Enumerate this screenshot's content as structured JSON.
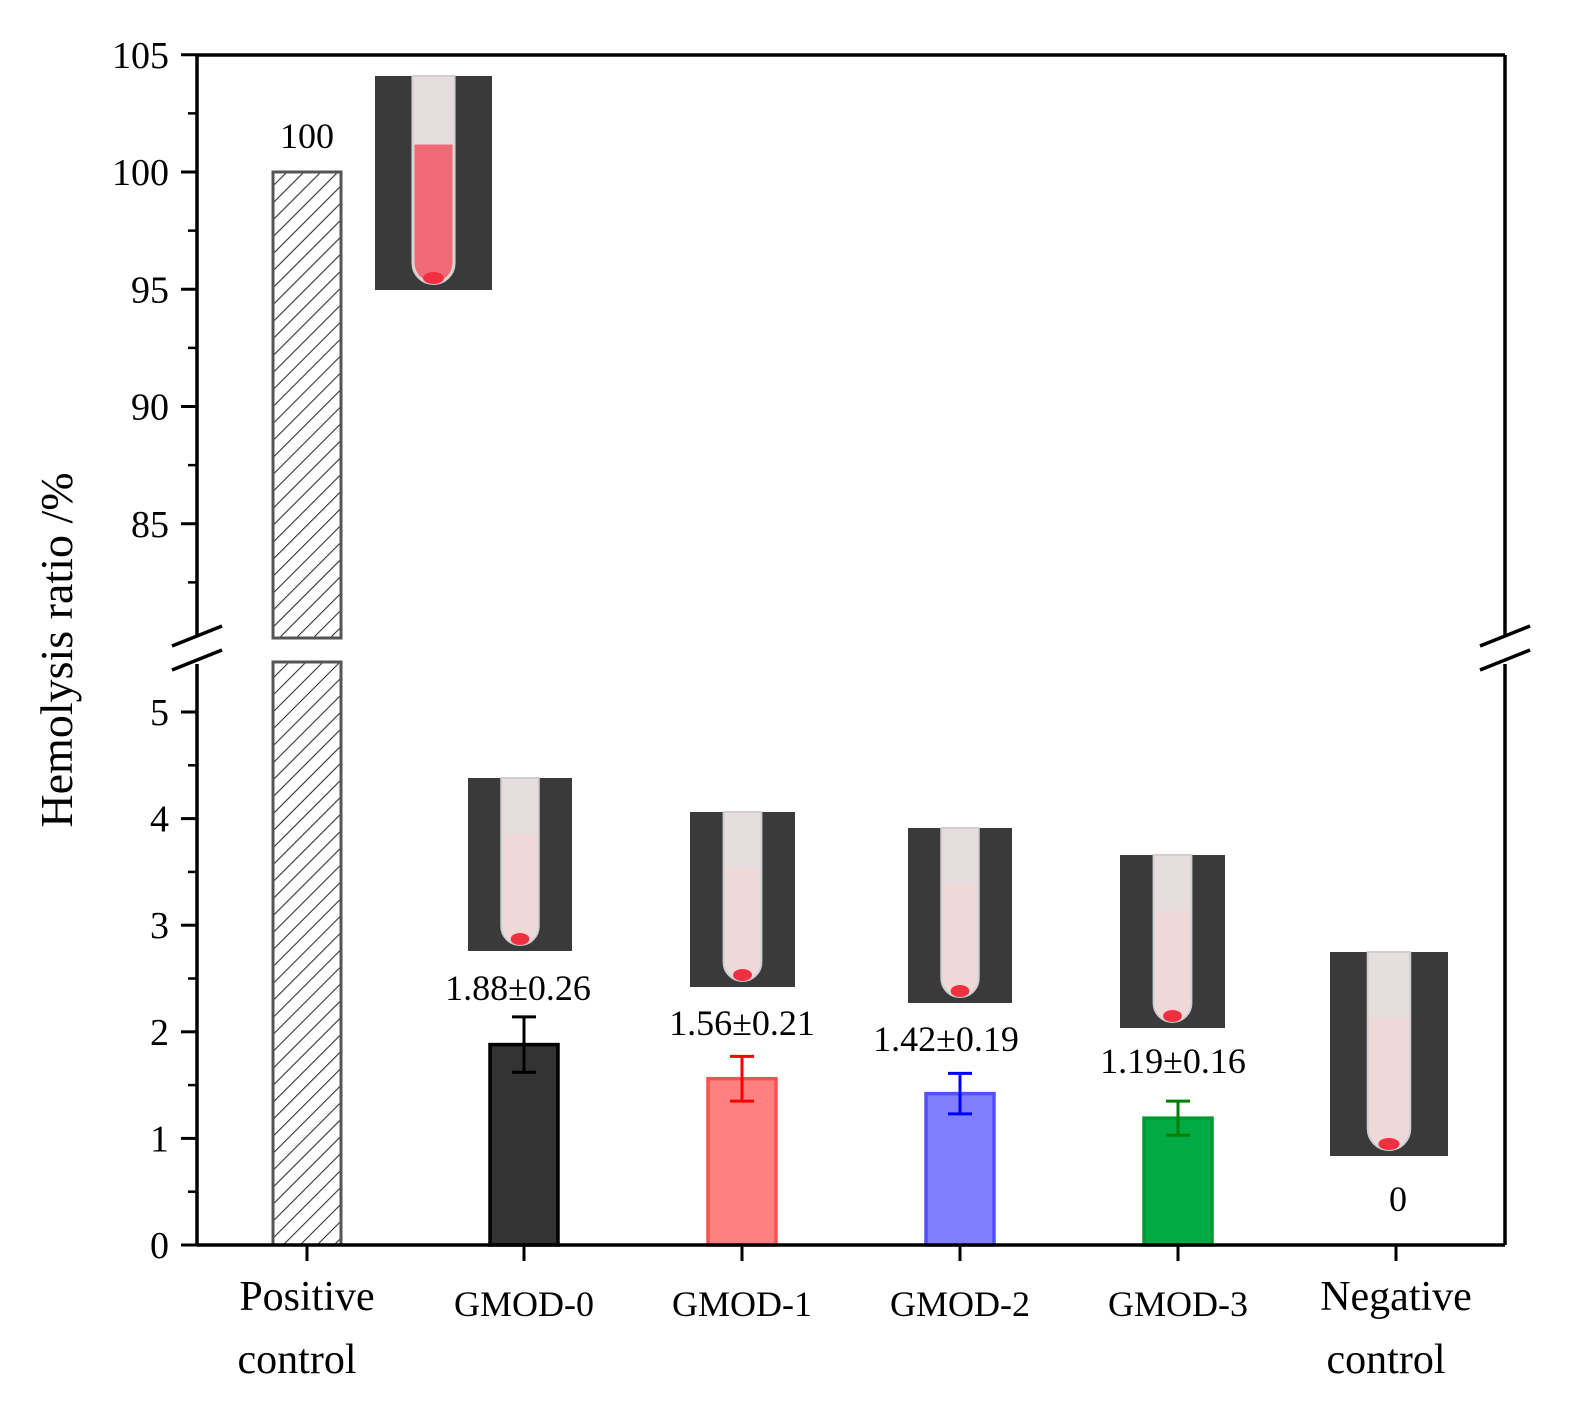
{
  "chart_data": {
    "type": "bar",
    "title": "",
    "xlabel": "",
    "ylabel": "Hemolysis ratio /%",
    "axis_break": {
      "lower_range": [
        0,
        5.5
      ],
      "upper_range": [
        81,
        105
      ]
    },
    "lower_ticks": [
      "0",
      "1",
      "2",
      "3",
      "4",
      "5"
    ],
    "upper_ticks": [
      "85",
      "90",
      "95",
      "100",
      "105"
    ],
    "categories": [
      {
        "line1": "Positive",
        "line2": "control"
      },
      {
        "line1": "GMOD-0",
        "line2": ""
      },
      {
        "line1": "GMOD-1",
        "line2": ""
      },
      {
        "line1": "GMOD-2",
        "line2": ""
      },
      {
        "line1": "GMOD-3",
        "line2": ""
      },
      {
        "line1": "Negative",
        "line2": "control"
      }
    ],
    "values": [
      100,
      1.88,
      1.56,
      1.42,
      1.19,
      0
    ],
    "errors": [
      0,
      0.26,
      0.21,
      0.19,
      0.16,
      0
    ],
    "data_labels": [
      "100",
      "1.88±0.26",
      "1.56±0.21",
      "1.42±0.19",
      "1.19±0.16",
      "0"
    ],
    "fills": [
      "hatch",
      "#333333",
      "#ff8080",
      "#8080ff",
      "#00aa44",
      "none"
    ],
    "edges": [
      "#555555",
      "#000000",
      "#ff5050",
      "#5050ff",
      "#009a30",
      "none"
    ],
    "error_colors": [
      "#000000",
      "#000000",
      "#ff0000",
      "#0000ff",
      "#008000",
      "#000000"
    ],
    "grid": false
  }
}
